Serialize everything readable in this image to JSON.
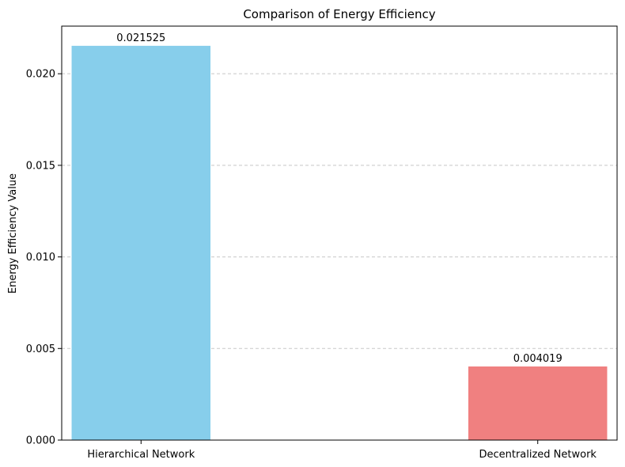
{
  "chart_data": {
    "type": "bar",
    "title": "Comparison of Energy Efficiency",
    "xlabel": "",
    "ylabel": "Energy Efficiency Value",
    "categories": [
      "Hierarchical Network",
      "Decentralized Network"
    ],
    "values": [
      0.021525,
      0.004019
    ],
    "data_labels": [
      "0.021525",
      "0.004019"
    ],
    "colors": [
      "#87CEEB",
      "#F08080"
    ],
    "ylim": [
      0,
      0.0226
    ],
    "yticks": [
      0.0,
      0.005,
      0.01,
      0.015,
      0.02
    ],
    "ytick_labels": [
      "0.000",
      "0.005",
      "0.010",
      "0.015",
      "0.020"
    ],
    "grid": {
      "axis": "y",
      "style": "dashed",
      "color": "#c8c8c8"
    },
    "legend": "none"
  }
}
